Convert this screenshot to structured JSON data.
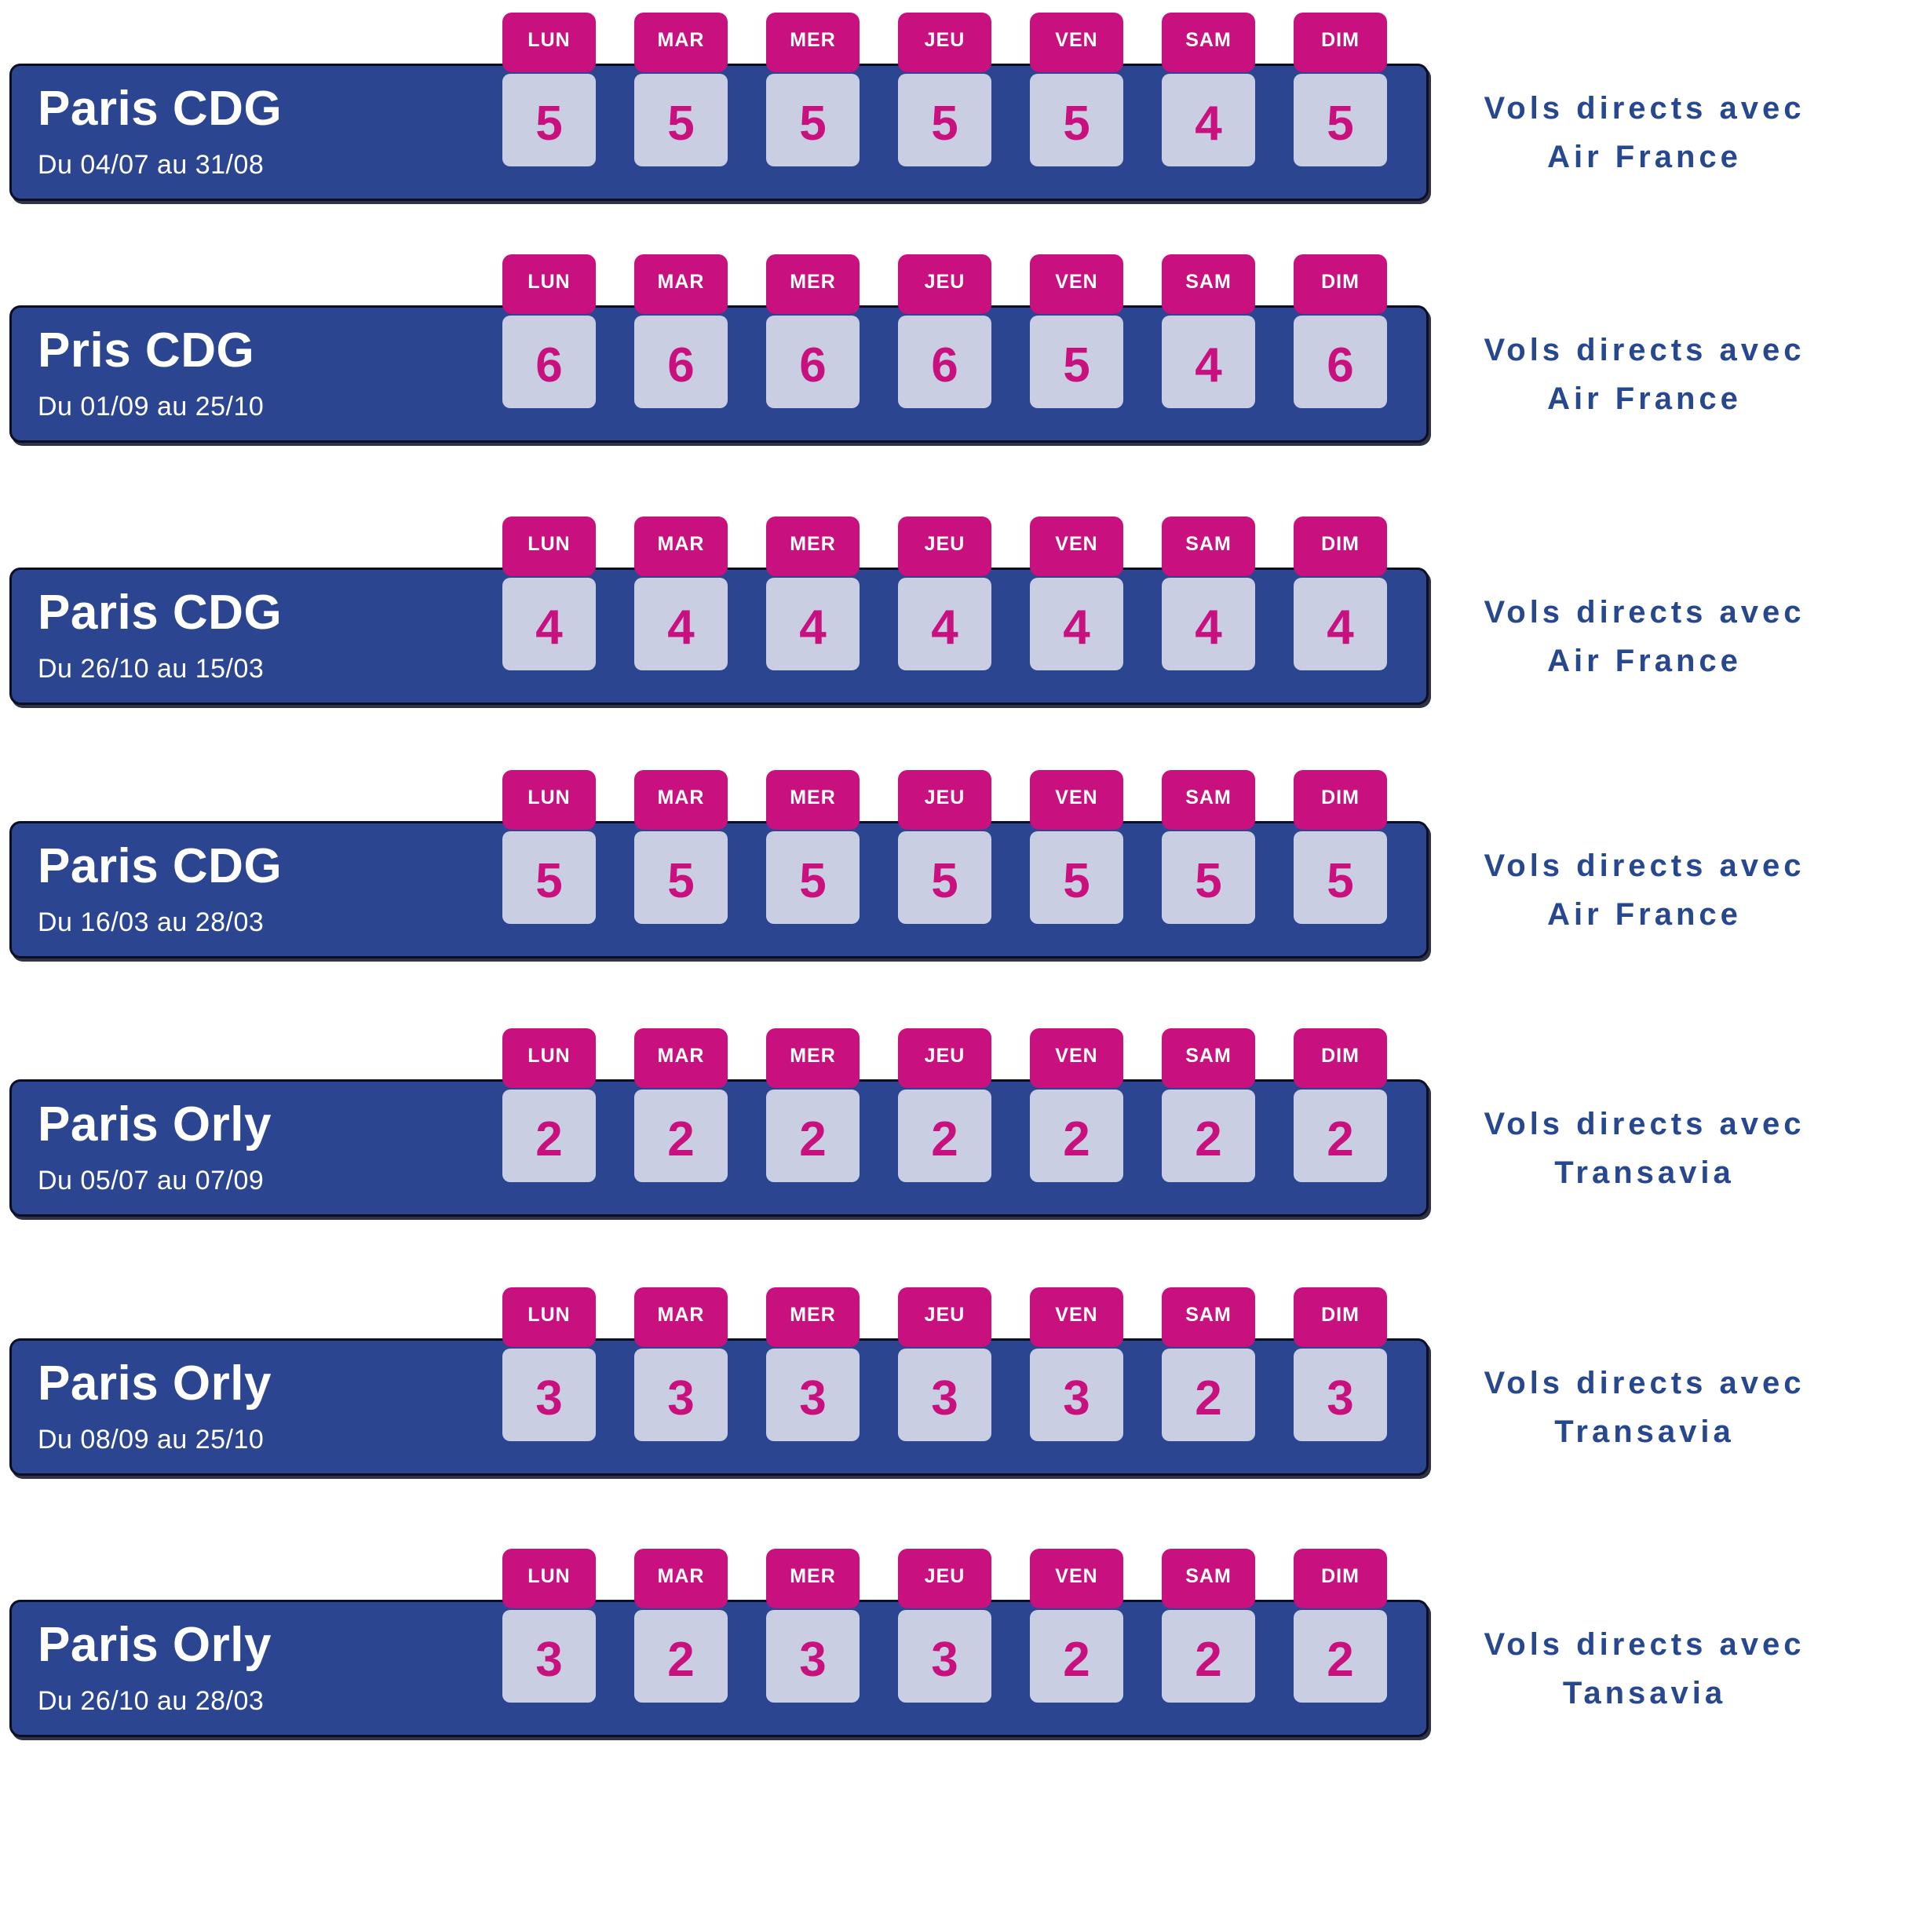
{
  "day_labels": [
    "LUN",
    "MAR",
    "MER",
    "JEU",
    "VEN",
    "SAM",
    "DIM"
  ],
  "rows": [
    {
      "title": "Paris CDG",
      "date_range": "Du 04/07 au 31/08",
      "values": [
        5,
        5,
        5,
        5,
        5,
        4,
        5
      ],
      "note_line1": "Vols directs avec",
      "note_line2": "Air France"
    },
    {
      "title": "Pris CDG",
      "date_range": "Du 01/09 au 25/10",
      "values": [
        6,
        6,
        6,
        6,
        5,
        4,
        6
      ],
      "note_line1": "Vols directs avec",
      "note_line2": "Air France"
    },
    {
      "title": "Paris CDG",
      "date_range": "Du 26/10 au 15/03",
      "values": [
        4,
        4,
        4,
        4,
        4,
        4,
        4
      ],
      "note_line1": "Vols directs avec",
      "note_line2": "Air France"
    },
    {
      "title": "Paris CDG",
      "date_range": "Du 16/03 au 28/03",
      "values": [
        5,
        5,
        5,
        5,
        5,
        5,
        5
      ],
      "note_line1": "Vols directs avec",
      "note_line2": "Air France"
    },
    {
      "title": "Paris Orly",
      "date_range": "Du 05/07 au 07/09",
      "values": [
        2,
        2,
        2,
        2,
        2,
        2,
        2
      ],
      "note_line1": "Vols directs avec",
      "note_line2": "Transavia"
    },
    {
      "title": "Paris Orly",
      "date_range": "Du 08/09 au 25/10",
      "values": [
        3,
        3,
        3,
        3,
        3,
        2,
        3
      ],
      "note_line1": "Vols directs avec",
      "note_line2": "Transavia"
    },
    {
      "title": "Paris Orly",
      "date_range": "Du 26/10 au 28/03",
      "values": [
        3,
        2,
        3,
        3,
        2,
        2,
        2
      ],
      "note_line1": "Vols directs avec",
      "note_line2": "Tansavia"
    }
  ],
  "chart_data": {
    "type": "table",
    "categories": [
      "LUN",
      "MAR",
      "MER",
      "JEU",
      "VEN",
      "SAM",
      "DIM"
    ],
    "series": [
      {
        "name": "Paris CDG | Du 04/07 au 31/08 | Vols directs avec Air France",
        "values": [
          5,
          5,
          5,
          5,
          5,
          4,
          5
        ]
      },
      {
        "name": "Pris CDG | Du 01/09 au 25/10 | Vols directs avec Air France",
        "values": [
          6,
          6,
          6,
          6,
          5,
          4,
          6
        ]
      },
      {
        "name": "Paris CDG | Du 26/10 au 15/03 | Vols directs avec Air France",
        "values": [
          4,
          4,
          4,
          4,
          4,
          4,
          4
        ]
      },
      {
        "name": "Paris CDG | Du 16/03 au 28/03 | Vols directs avec Air France",
        "values": [
          5,
          5,
          5,
          5,
          5,
          5,
          5
        ]
      },
      {
        "name": "Paris Orly | Du 05/07 au 07/09 | Vols directs avec Transavia",
        "values": [
          2,
          2,
          2,
          2,
          2,
          2,
          2
        ]
      },
      {
        "name": "Paris Orly | Du 08/09 au 25/10 | Vols directs avec Transavia",
        "values": [
          3,
          3,
          3,
          3,
          3,
          2,
          3
        ]
      },
      {
        "name": "Paris Orly | Du 26/10 au 28/03 | Vols directs avec Tansavia",
        "values": [
          3,
          2,
          3,
          3,
          2,
          2,
          2
        ]
      }
    ],
    "title": "",
    "legend_position": "right-of-rows",
    "grid": false
  },
  "colors": {
    "bar_blue": "#2B4590",
    "bar_border": "#0C0F24",
    "magenta": "#C8107E",
    "card_bg": "#C9CEE3",
    "note_navy": "#27478F"
  }
}
